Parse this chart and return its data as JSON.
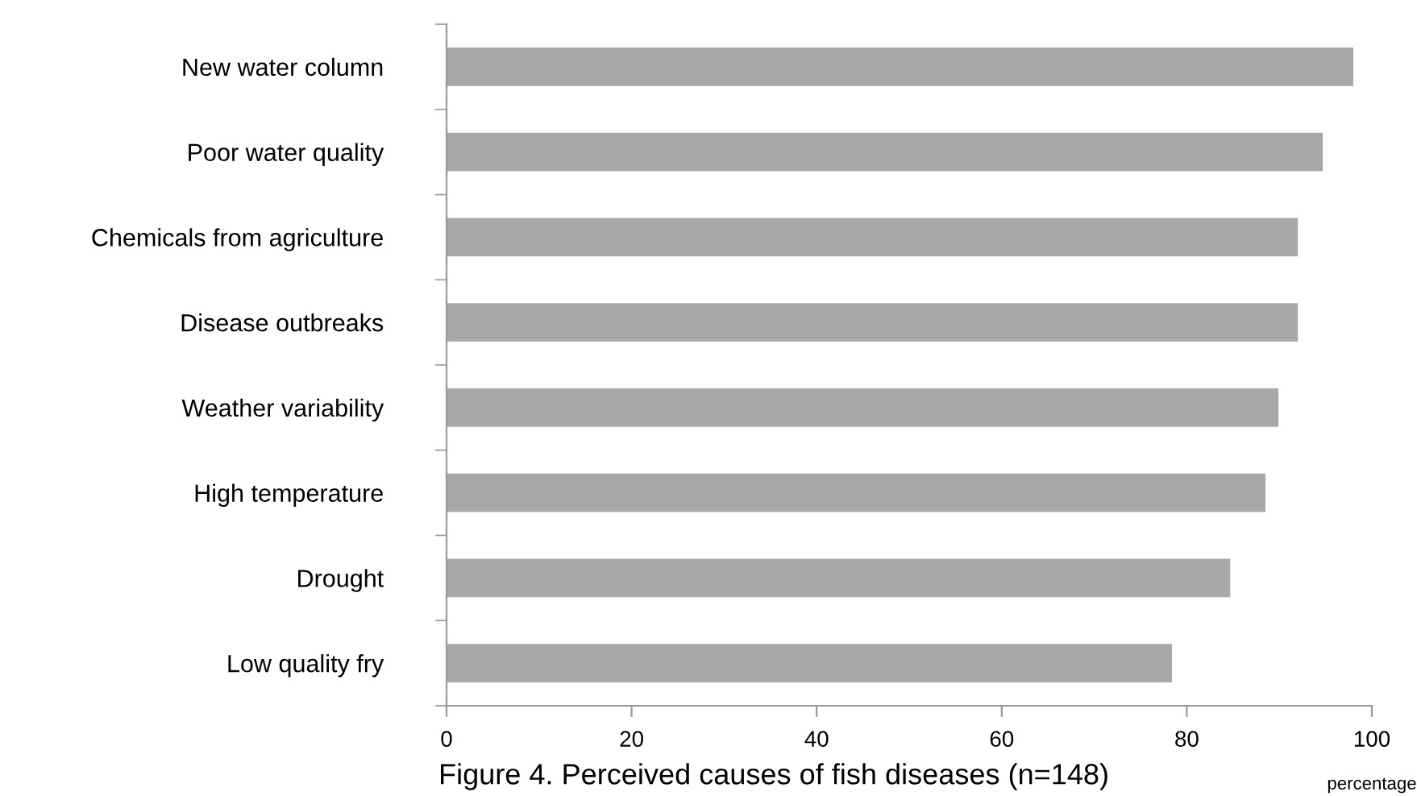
{
  "chart_data": {
    "type": "bar",
    "orientation": "horizontal",
    "xlabel": "percentage",
    "categories": [
      "New water column",
      "Poor water quality",
      "Chemicals from agriculture",
      "Disease outbreaks",
      "Weather variability",
      "High temperature",
      "Drought",
      "Low quality fry"
    ],
    "values": [
      98,
      94.7,
      92,
      92,
      89.9,
      88.5,
      84.7,
      78.4
    ],
    "color": "#a8a8a8",
    "xlim": [
      0,
      100
    ],
    "xticks": [
      0,
      20,
      40,
      60,
      80,
      100
    ],
    "grid": false,
    "annotations": [
      "Figure 4. Perceived causes of fish diseases (n=148)"
    ]
  }
}
